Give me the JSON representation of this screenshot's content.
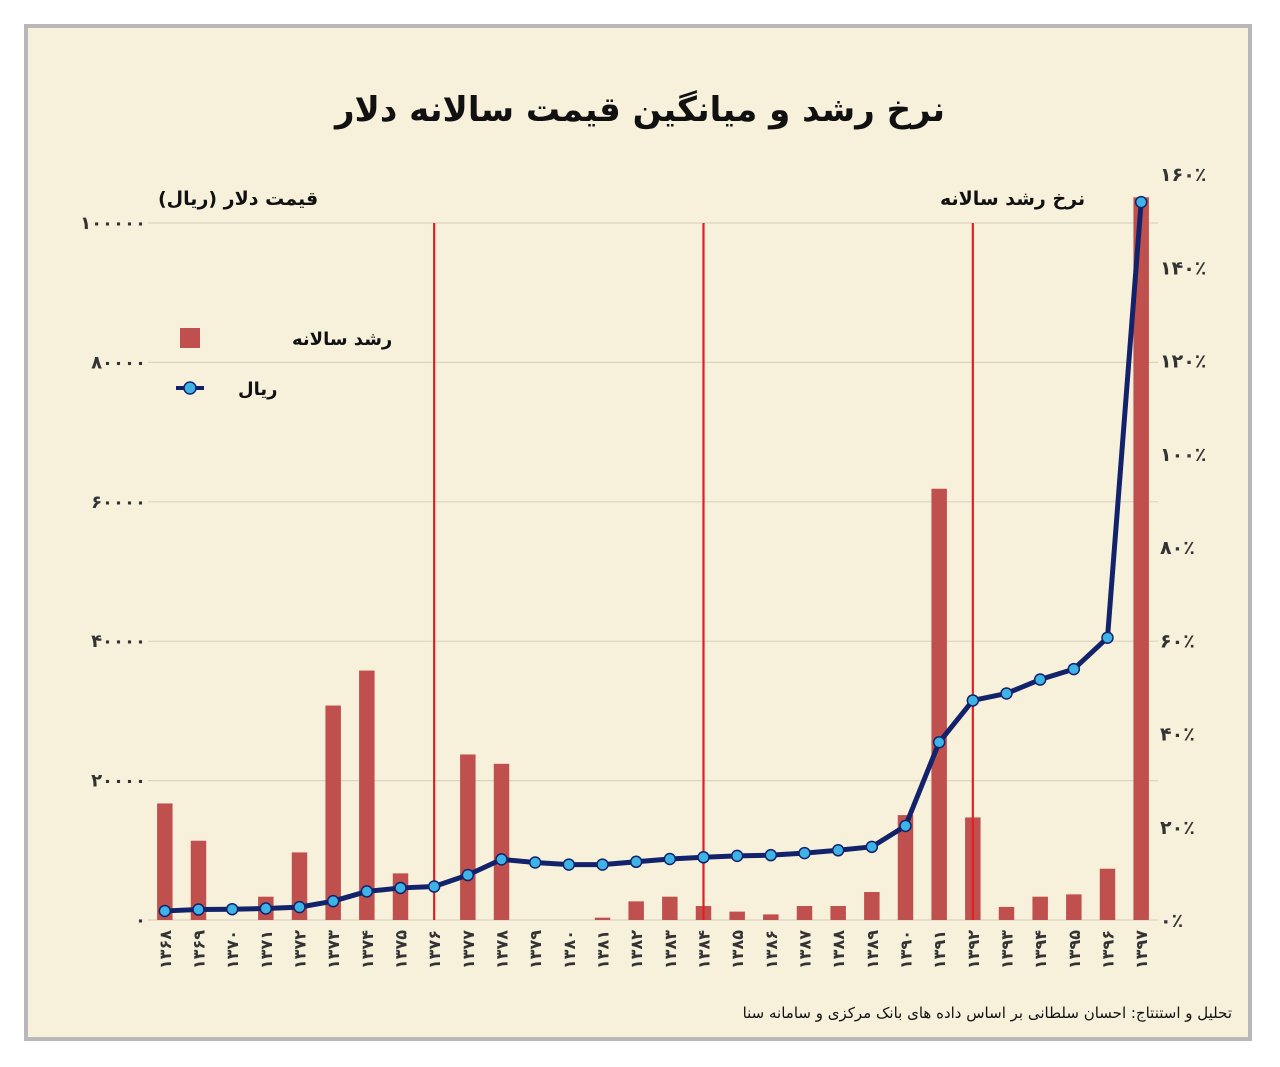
{
  "chart_data": {
    "type": "bar+line",
    "title": "نرخ رشد و میانگین قیمت سالانه دلار",
    "categories": [
      "۱۳۶۸",
      "۱۳۶۹",
      "۱۳۷۰",
      "۱۳۷۱",
      "۱۳۷۲",
      "۱۳۷۳",
      "۱۳۷۴",
      "۱۳۷۵",
      "۱۳۷۶",
      "۱۳۷۷",
      "۱۳۷۸",
      "۱۳۷۹",
      "۱۳۸۰",
      "۱۳۸۱",
      "۱۳۸۲",
      "۱۳۸۳",
      "۱۳۸۴",
      "۱۳۸۵",
      "۱۳۸۶",
      "۱۳۸۷",
      "۱۳۸۸",
      "۱۳۸۹",
      "۱۳۹۰",
      "۱۳۹۱",
      "۱۳۹۲",
      "۱۳۹۳",
      "۱۳۹۴",
      "۱۳۹۵",
      "۱۳۹۶",
      "۱۳۹۷"
    ],
    "series": [
      {
        "name": "رشد سالانه",
        "type": "bar",
        "axis": "right",
        "color": "#c0504d",
        "values": [
          25,
          17,
          0,
          5,
          14.5,
          46,
          53.5,
          10,
          0,
          35.5,
          33.5,
          0,
          0,
          0.5,
          4,
          5,
          3,
          1.8,
          1.2,
          3,
          3,
          6,
          22.5,
          92.5,
          22,
          2.8,
          5,
          5.5,
          11,
          155
        ]
      },
      {
        "name": "ریال",
        "type": "line",
        "axis": "left",
        "color": "#13236b",
        "marker_color": "#3db3e6",
        "values": [
          1300,
          1500,
          1550,
          1650,
          1850,
          2700,
          4100,
          4600,
          4800,
          6450,
          8700,
          8250,
          7950,
          7950,
          8350,
          8750,
          9000,
          9200,
          9300,
          9600,
          10000,
          10500,
          13500,
          25500,
          31500,
          32500,
          34500,
          36000,
          40500,
          103000
        ]
      }
    ],
    "left_axis": {
      "label": "قیمت دلار (ریال)",
      "min": 0,
      "max": 100000,
      "ticks": [
        0,
        20000,
        40000,
        60000,
        80000,
        100000
      ],
      "tick_labels": [
        "۰",
        "۲۰۰۰۰",
        "۴۰۰۰۰",
        "۶۰۰۰۰",
        "۸۰۰۰۰",
        "۱۰۰۰۰۰"
      ]
    },
    "right_axis": {
      "label": "نرخ رشد سالانه",
      "min": 0,
      "max": 160,
      "ticks": [
        0,
        20,
        40,
        60,
        80,
        100,
        120,
        140,
        160
      ],
      "tick_labels": [
        "۰٪",
        "۲۰٪",
        "۴۰٪",
        "۶۰٪",
        "۸۰٪",
        "۱۰۰٪",
        "۱۲۰٪",
        "۱۴۰٪",
        "۱۶۰٪"
      ]
    },
    "vertical_markers": [
      "۱۳۷۶",
      "۱۳۸۴",
      "۱۳۹۲"
    ],
    "vertical_marker_color": "#e02020",
    "grid": true,
    "legend_position": "top-left"
  },
  "source": "تحلیل و استنتاج: احسان سلطانی بر اساس داده های بانک مرکزی و سامانه سنا"
}
